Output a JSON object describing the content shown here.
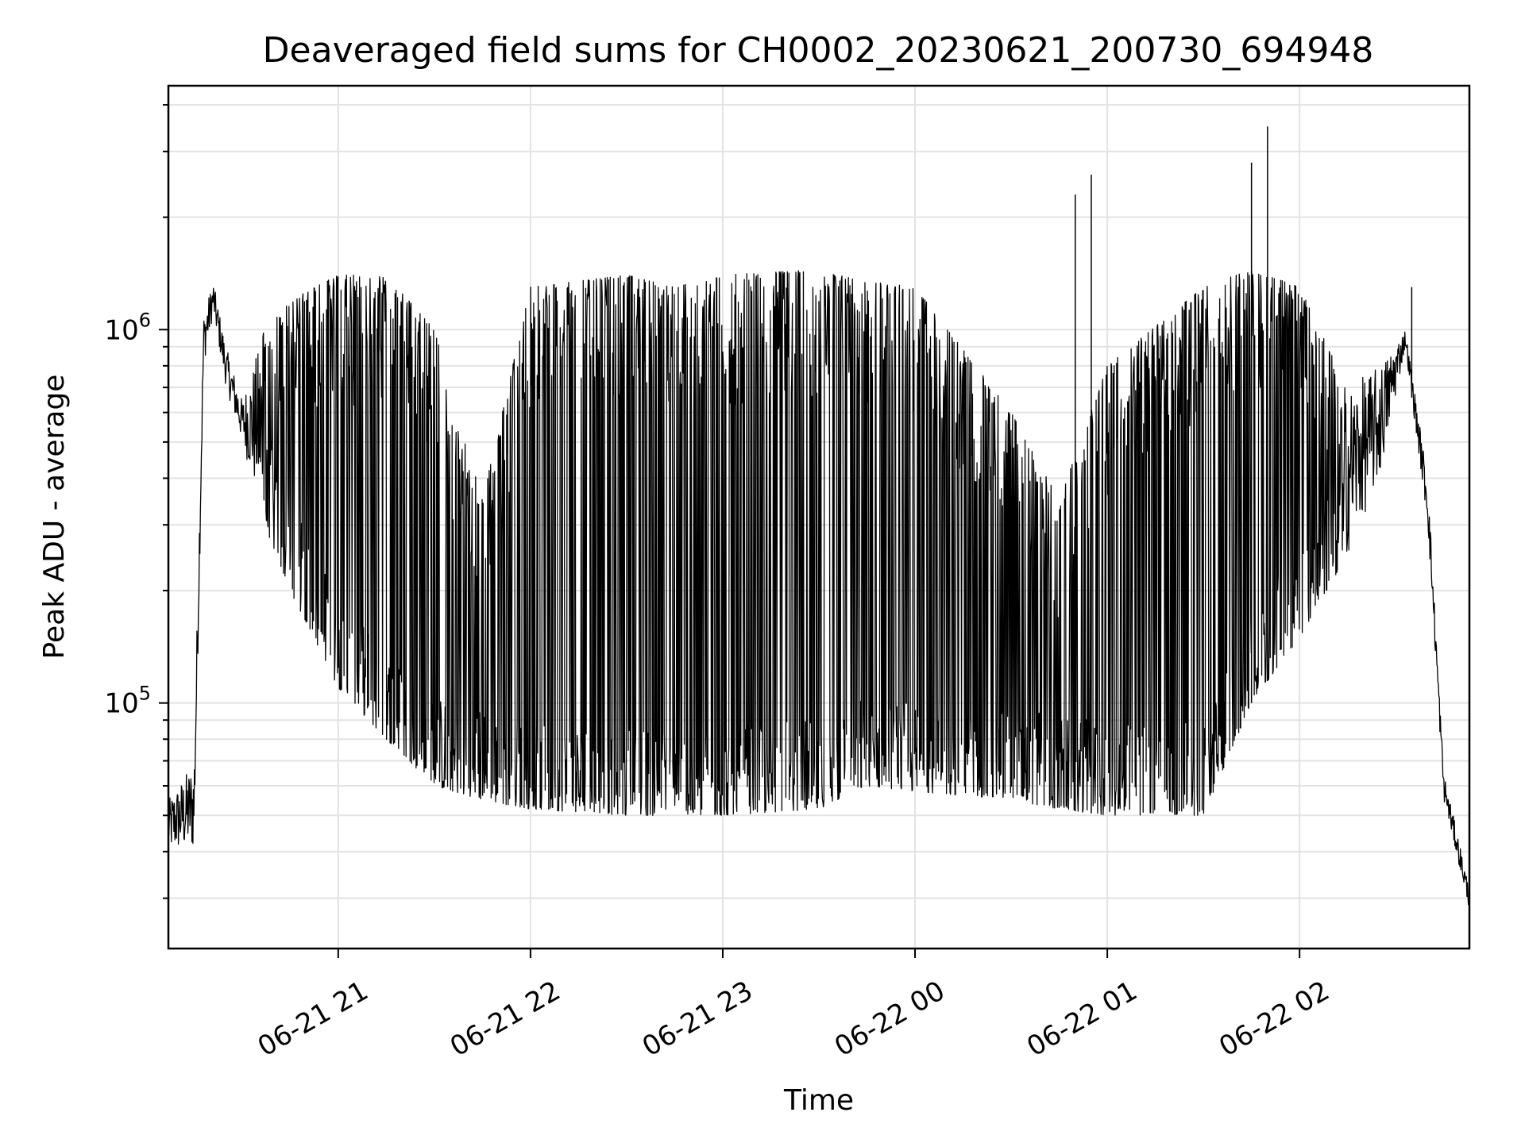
{
  "chart_data": {
    "type": "line",
    "title": "Deaveraged field sums for CH0002_20230621_200730_694948",
    "xlabel": "Time",
    "ylabel": "Peak ADU - average",
    "yscale": "log",
    "ylim": [
      22000,
      4500000
    ],
    "xlim": [
      "06-21 20:07",
      "06-22 02:53"
    ],
    "grid": true,
    "x_tick_labels": [
      "06-21 21",
      "06-21 22",
      "06-21 23",
      "06-22 00",
      "06-22 01",
      "06-22 02"
    ],
    "y_tick_labels": [
      {
        "base": "10",
        "exp": "5",
        "value": 100000
      },
      {
        "base": "10",
        "exp": "6",
        "value": 1000000
      }
    ],
    "series": [
      {
        "color": "#000000",
        "envelope": [
          {
            "t": "06-21 20:07",
            "low": 40000,
            "high": 55000
          },
          {
            "t": "06-21 20:15",
            "low": 40000,
            "high": 70000
          },
          {
            "t": "06-21 20:18",
            "low": 800000,
            "high": 1100000
          },
          {
            "t": "06-21 20:21",
            "low": 1100000,
            "high": 1350000
          },
          {
            "t": "06-21 20:25",
            "low": 700000,
            "high": 900000
          },
          {
            "t": "06-21 20:30",
            "low": 500000,
            "high": 650000
          },
          {
            "t": "06-21 20:37",
            "low": 300000,
            "high": 1000000
          },
          {
            "t": "06-21 20:45",
            "low": 200000,
            "high": 1200000
          },
          {
            "t": "06-21 21:00",
            "low": 110000,
            "high": 1400000
          },
          {
            "t": "06-21 21:15",
            "low": 80000,
            "high": 1400000
          },
          {
            "t": "06-21 21:30",
            "low": 60000,
            "high": 1000000
          },
          {
            "t": "06-21 21:45",
            "low": 55000,
            "high": 350000
          },
          {
            "t": "06-21 22:00",
            "low": 52000,
            "high": 1300000
          },
          {
            "t": "06-21 22:30",
            "low": 50000,
            "high": 1400000
          },
          {
            "t": "06-21 22:45",
            "low": 50000,
            "high": 1300000
          },
          {
            "t": "06-21 23:00",
            "low": 50000,
            "high": 1400000
          },
          {
            "t": "06-21 23:30",
            "low": 52000,
            "high": 1450000
          },
          {
            "t": "06-21 23:45",
            "low": 60000,
            "high": 1350000
          },
          {
            "t": "06-22 00:00",
            "low": 58000,
            "high": 1300000
          },
          {
            "t": "06-22 00:30",
            "low": 55000,
            "high": 600000
          },
          {
            "t": "06-22 00:45",
            "low": 52000,
            "high": 350000
          },
          {
            "t": "06-22 01:00",
            "low": 50000,
            "high": 800000
          },
          {
            "t": "06-22 01:30",
            "low": 50000,
            "high": 1300000
          },
          {
            "t": "06-22 01:45",
            "low": 100000,
            "high": 1450000
          },
          {
            "t": "06-22 02:00",
            "low": 150000,
            "high": 1300000
          },
          {
            "t": "06-22 02:15",
            "low": 250000,
            "high": 700000
          },
          {
            "t": "06-22 02:25",
            "low": 400000,
            "high": 800000
          },
          {
            "t": "06-22 02:33",
            "low": 900000,
            "high": 1000000
          },
          {
            "t": "06-22 02:40",
            "low": 300000,
            "high": 400000
          },
          {
            "t": "06-22 02:45",
            "low": 55000,
            "high": 65000
          },
          {
            "t": "06-22 02:53",
            "low": 28000,
            "high": 32000
          }
        ],
        "spikes": [
          {
            "t": "06-22 00:50",
            "value": 2300000
          },
          {
            "t": "06-22 00:55",
            "value": 2600000
          },
          {
            "t": "06-22 01:45",
            "value": 2800000
          },
          {
            "t": "06-22 01:50",
            "value": 3500000
          },
          {
            "t": "06-22 02:35",
            "value": 1300000
          }
        ]
      }
    ]
  }
}
